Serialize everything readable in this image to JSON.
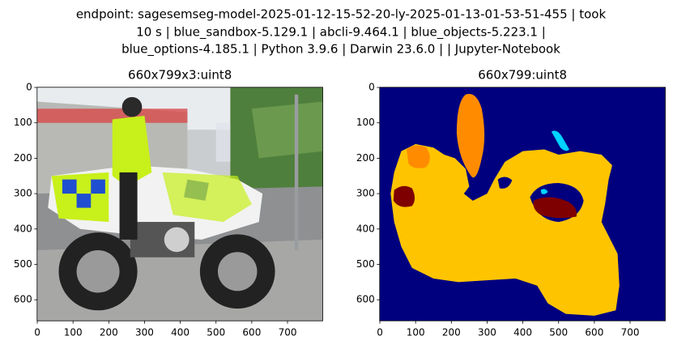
{
  "title": [
    "endpoint: sagesemseg-model-2025-01-12-15-52-20-ly-2025-01-13-01-53-51-455 | took",
    "10 s | blue_sandbox-5.129.1 | abcli-9.464.1 | blue_objects-5.223.1 |",
    "blue_options-4.185.1 | Python 3.9.6 | Darwin 23.6.0 |  | Jupyter-Notebook"
  ],
  "chart_data": [
    {
      "type": "image",
      "title": "660x799x3:uint8",
      "xlim": [
        -0.5,
        798.5
      ],
      "ylim": [
        659.5,
        -0.5
      ],
      "xticks": [
        0,
        100,
        200,
        300,
        400,
        500,
        600,
        700
      ],
      "yticks": [
        0,
        100,
        200,
        300,
        400,
        500,
        600
      ]
    },
    {
      "type": "image",
      "title": "660x799:uint8",
      "xlim": [
        -0.5,
        798.5
      ],
      "ylim": [
        659.5,
        -0.5
      ],
      "xticks": [
        0,
        100,
        200,
        300,
        400,
        500,
        600,
        700
      ],
      "yticks": [
        0,
        100,
        200,
        300,
        400,
        500,
        600
      ]
    }
  ]
}
